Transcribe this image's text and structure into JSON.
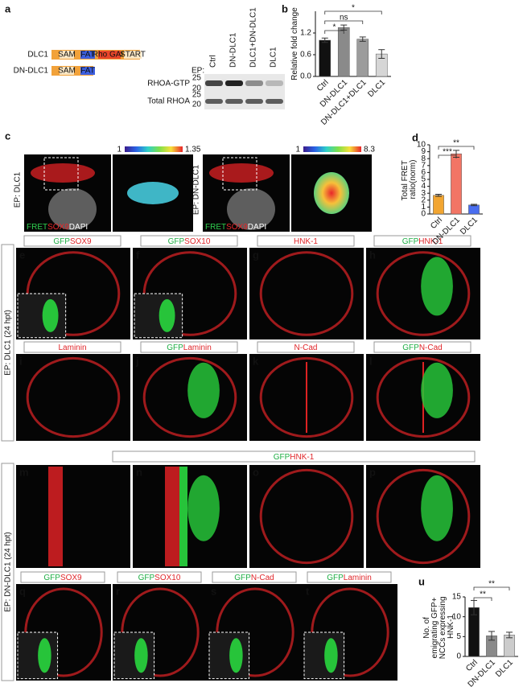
{
  "chart_data": [
    {
      "type": "bar",
      "panel": "b",
      "y_label": "Relative fold change",
      "categories": [
        "Ctrl",
        "DN-DLC1",
        "DN-DLC1+DLC1",
        "DLC1"
      ],
      "values": [
        1.0,
        1.35,
        1.03,
        0.62
      ],
      "errors": [
        0.06,
        0.07,
        0.06,
        0.12
      ],
      "colors": [
        "#111111",
        "#8a8a8a",
        "#9c9c9c",
        "#d6d6d6"
      ],
      "ylim": [
        0,
        1.8
      ],
      "yticks": [
        {
          "value": 0,
          "label": "0.0"
        },
        {
          "value": 0.6,
          "label": "0.6"
        },
        {
          "value": 1.2,
          "label": "1.2"
        }
      ],
      "annotations": [
        "*",
        "ns",
        "*"
      ]
    },
    {
      "type": "bar",
      "panel": "d",
      "y_label": "Total FRET ratio(norm)",
      "categories": [
        "Ctrl",
        "DN-DLC1",
        "DLC1"
      ],
      "values": [
        2.7,
        8.7,
        1.3
      ],
      "errors": [
        0.15,
        0.5,
        0.1
      ],
      "colors": [
        "#f2a531",
        "#f27565",
        "#4a6ef0"
      ],
      "ylim": [
        0,
        10
      ],
      "yticks": [
        0,
        1,
        2,
        3,
        4,
        5,
        6,
        7,
        8,
        9,
        10
      ],
      "annotations": [
        "**",
        "***"
      ]
    },
    {
      "type": "bar",
      "panel": "u",
      "y_label": "No. of emigrating GFP+ NCCs expressing HNK-1",
      "categories": [
        "Ctrl",
        "DN-DLC1",
        "DLC1"
      ],
      "values": [
        12.3,
        5.2,
        5.4
      ],
      "errors": [
        1.8,
        1.1,
        0.7
      ],
      "colors": [
        "#111111",
        "#8a8a8a",
        "#cccccc"
      ],
      "ylim": [
        0,
        15
      ],
      "yticks": [
        0,
        5,
        10,
        15
      ],
      "annotations": [
        "**",
        "**"
      ]
    }
  ],
  "panel_a": {
    "letter": "a",
    "constructs": [
      {
        "name": "DLC1",
        "domains": [
          "SAM",
          "FAT",
          "Rho GAP",
          "START"
        ]
      },
      {
        "name": "DN-DLC1",
        "domains": [
          "SAM",
          "FAT"
        ]
      }
    ]
  },
  "panel_b": {
    "ep": "EP:",
    "lanes": [
      "Ctrl",
      "DN-DLC1",
      "DLC1+DN-DLC1",
      "DLC1"
    ],
    "rows": [
      "RHOA-GTP",
      "Total RHOA"
    ],
    "markers": [
      "25",
      "20",
      "25",
      "20"
    ]
  },
  "panel_c": {
    "letter": "c",
    "images": [
      {
        "ep": "EP: DLC1",
        "scale": [
          "1",
          "1.35"
        ],
        "stain": [
          {
            "text": "FRET",
            "color": "#2fd04f"
          },
          {
            "text": "SOX9",
            "color": "#e8262a"
          },
          {
            "text": "DAPI",
            "color": "#ffffff"
          }
        ]
      },
      {
        "ep": "EP: DN-DLC1",
        "scale": [
          "1",
          "8.3"
        ],
        "stain": [
          {
            "text": "FRET",
            "color": "#2fd04f"
          },
          {
            "text": "SOX9",
            "color": "#e8262a"
          },
          {
            "text": "DAPI",
            "color": "#ffffff"
          }
        ]
      }
    ]
  },
  "section_1": {
    "side_label": "EP: DLC1 (24 hpt)",
    "panels": [
      {
        "letter": "e",
        "stain": [
          {
            "text": "GFP",
            "color": "#1fae45"
          },
          {
            "text": "SOX9",
            "color": "#e0262a"
          }
        ]
      },
      {
        "letter": "f",
        "stain": [
          {
            "text": "GFP",
            "color": "#1fae45"
          },
          {
            "text": "SOX10",
            "color": "#e0262a"
          }
        ]
      },
      {
        "letter": "g",
        "stain": [
          {
            "text": "HNK-1",
            "color": "#e0262a"
          }
        ]
      },
      {
        "letter": "h",
        "stain": [
          {
            "text": "GFP",
            "color": "#1fae45"
          },
          {
            "text": "HNK-1",
            "color": "#e0262a"
          }
        ]
      },
      {
        "letter": "i",
        "stain": [
          {
            "text": "Laminin",
            "color": "#e0262a"
          }
        ]
      },
      {
        "letter": "j",
        "stain": [
          {
            "text": "GFP",
            "color": "#1fae45"
          },
          {
            "text": "Laminin",
            "color": "#e0262a"
          }
        ]
      },
      {
        "letter": "k",
        "stain": [
          {
            "text": "N-Cad",
            "color": "#e0262a"
          }
        ]
      },
      {
        "letter": "l",
        "stain": [
          {
            "text": "GFP",
            "color": "#1fae45"
          },
          {
            "text": "N-Cad",
            "color": "#e0262a"
          }
        ]
      }
    ]
  },
  "section_2": {
    "side_label": "EP: DN-DLC1 (24 hpt)",
    "header": [
      {
        "text": "GFP",
        "color": "#1fae45"
      },
      {
        "text": "HNK-1",
        "color": "#e0262a"
      }
    ],
    "panels": [
      {
        "letter": "m"
      },
      {
        "letter": "n"
      },
      {
        "letter": "o"
      },
      {
        "letter": "p"
      },
      {
        "letter": "q",
        "stain": [
          {
            "text": "GFP",
            "color": "#1fae45"
          },
          {
            "text": "SOX9",
            "color": "#e0262a"
          }
        ]
      },
      {
        "letter": "r",
        "stain": [
          {
            "text": "GFP",
            "color": "#1fae45"
          },
          {
            "text": "SOX10",
            "color": "#e0262a"
          }
        ]
      },
      {
        "letter": "s",
        "stain": [
          {
            "text": "GFP",
            "color": "#1fae45"
          },
          {
            "text": "N-Cad",
            "color": "#e0262a"
          }
        ]
      },
      {
        "letter": "t",
        "stain": [
          {
            "text": "GFP",
            "color": "#1fae45"
          },
          {
            "text": "Laminin",
            "color": "#e0262a"
          }
        ]
      }
    ]
  }
}
